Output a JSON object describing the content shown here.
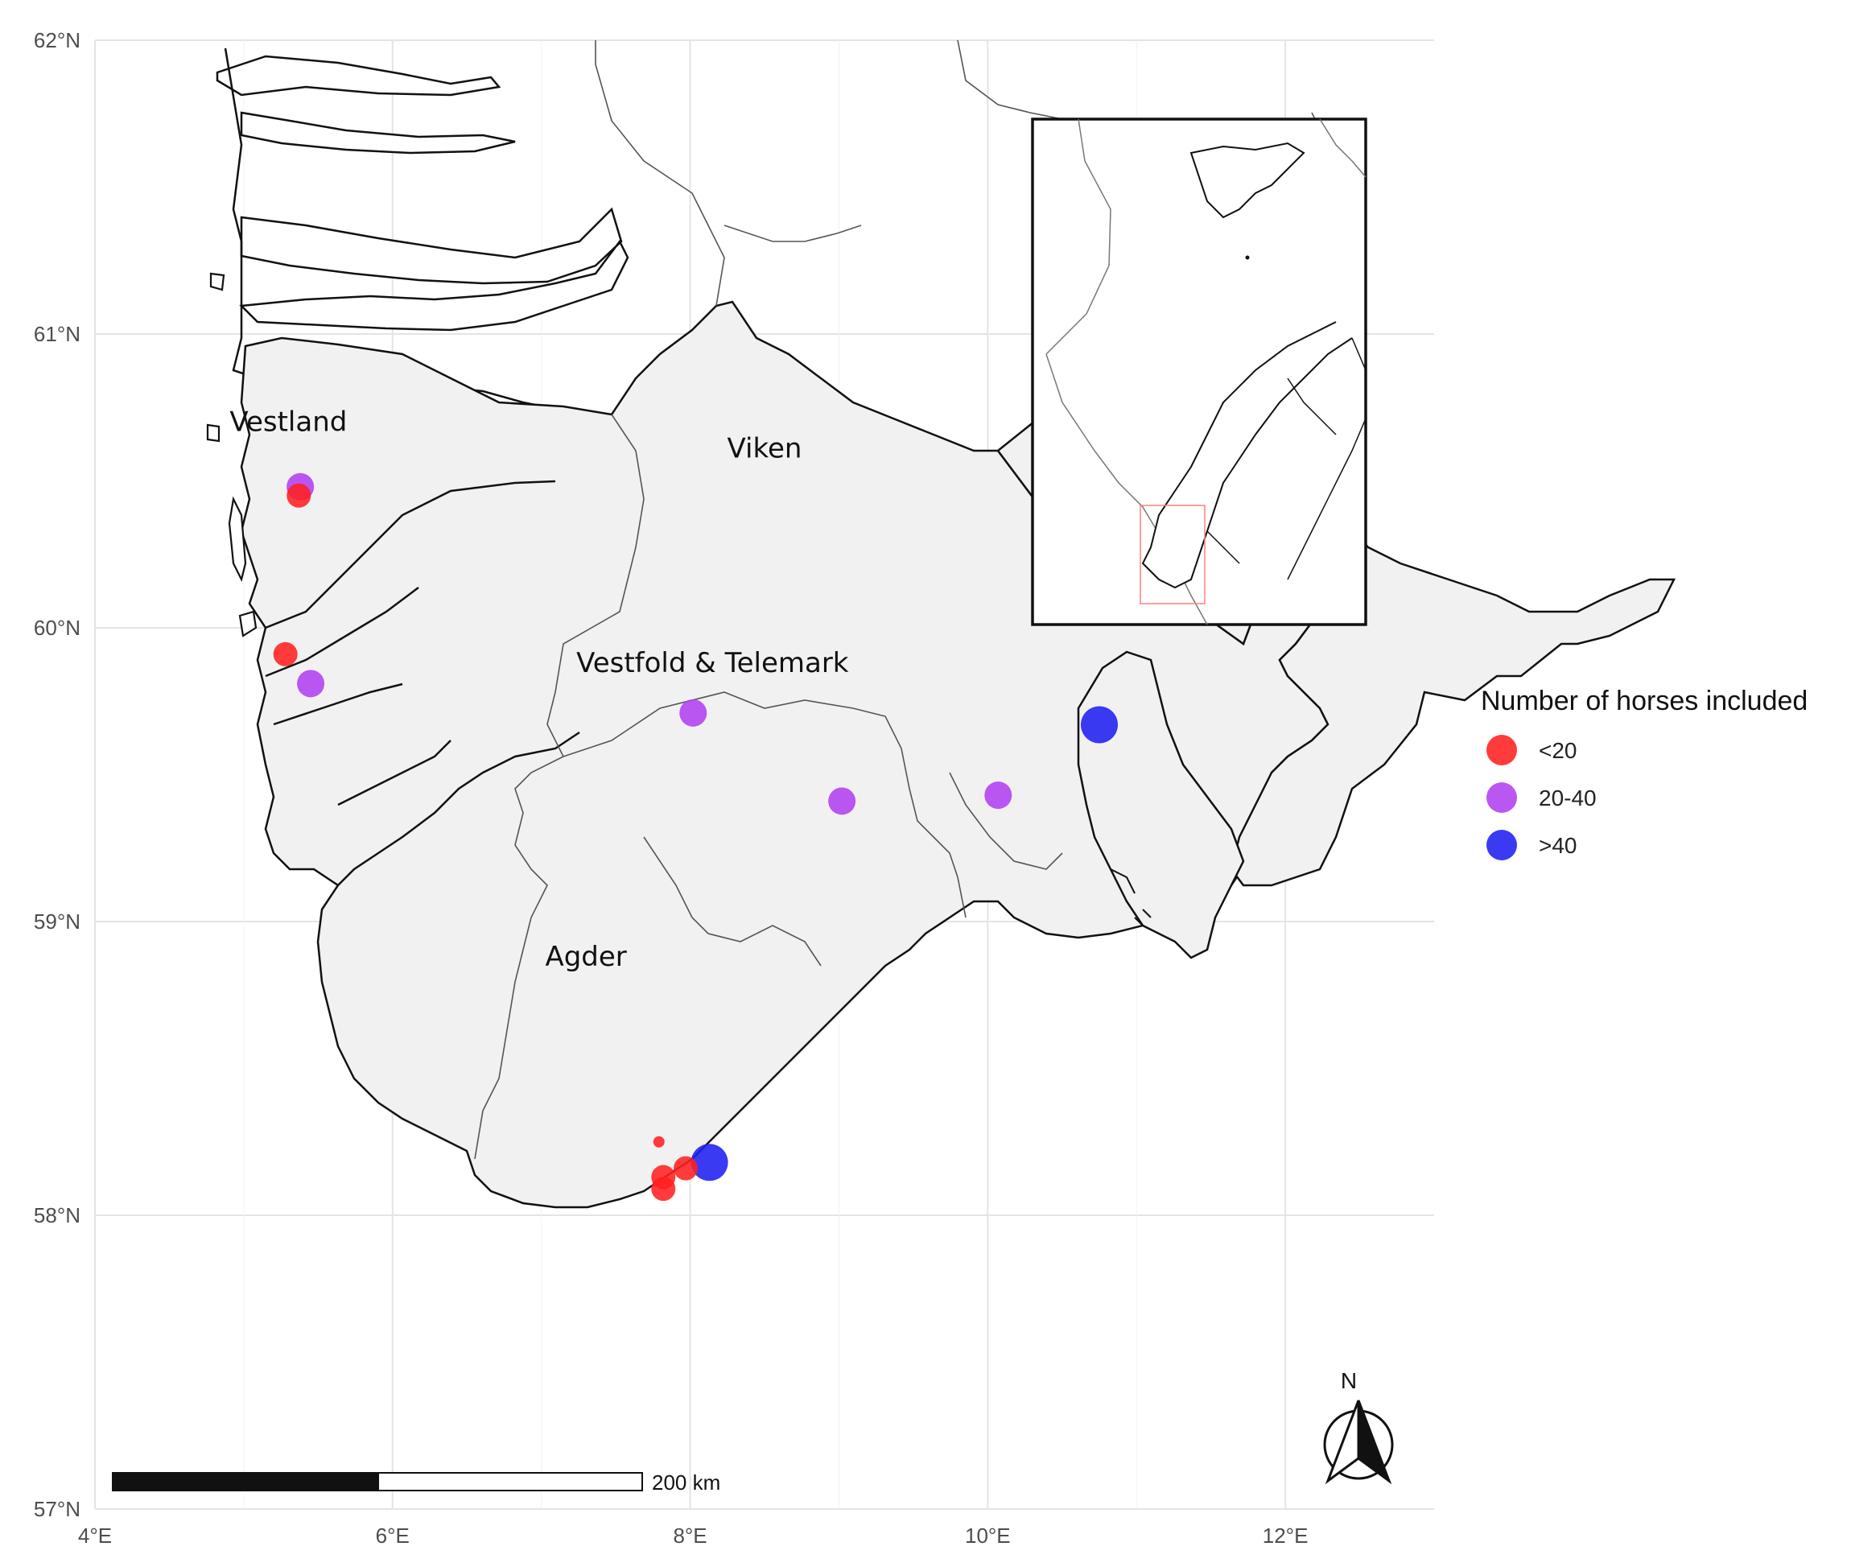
{
  "axes": {
    "x_ticks": [
      "4°E",
      "6°E",
      "8°E",
      "10°E",
      "12°E"
    ],
    "x_values": [
      4,
      6,
      8,
      10,
      12
    ],
    "y_ticks": [
      "57°N",
      "58°N",
      "59°N",
      "60°N",
      "61°N",
      "62°N"
    ],
    "y_values": [
      57,
      58,
      59,
      60,
      61,
      62
    ],
    "xlim": [
      4,
      13
    ],
    "ylim": [
      57,
      62
    ]
  },
  "regions": [
    {
      "name": "Vestland",
      "lon": 5.3,
      "lat": 60.67
    },
    {
      "name": "Viken",
      "lon": 8.5,
      "lat": 60.58
    },
    {
      "name": "Vestfold & Telemark",
      "lon": 8.15,
      "lat": 59.85
    },
    {
      "name": "Agder",
      "lon": 7.3,
      "lat": 58.85
    }
  ],
  "legend": {
    "title": "Number of horses included",
    "items": [
      {
        "label": "<20",
        "color": "#ff2020"
      },
      {
        "label": "20-40",
        "color": "#b040f0"
      },
      {
        "label": ">40",
        "color": "#1f1ff0"
      }
    ]
  },
  "sites": [
    {
      "lon": 5.38,
      "lat": 60.48,
      "category": "20-40"
    },
    {
      "lon": 5.37,
      "lat": 60.45,
      "category": "<20"
    },
    {
      "lon": 5.28,
      "lat": 59.91,
      "category": "<20"
    },
    {
      "lon": 5.45,
      "lat": 59.81,
      "category": "20-40"
    },
    {
      "lon": 8.02,
      "lat": 59.71,
      "category": "20-40"
    },
    {
      "lon": 9.02,
      "lat": 59.41,
      "category": "20-40"
    },
    {
      "lon": 10.07,
      "lat": 59.43,
      "category": "20-40"
    },
    {
      "lon": 10.75,
      "lat": 59.67,
      "category": ">40"
    },
    {
      "lon": 8.13,
      "lat": 58.18,
      "category": ">40"
    },
    {
      "lon": 7.97,
      "lat": 58.16,
      "category": "<20"
    },
    {
      "lon": 7.82,
      "lat": 58.13,
      "category": "<20"
    },
    {
      "lon": 7.82,
      "lat": 58.09,
      "category": "<20"
    },
    {
      "lon": 7.79,
      "lat": 58.25,
      "category": "<20"
    }
  ],
  "scale_bar": {
    "label": "200 km"
  },
  "north_arrow": {
    "label": "N",
    "icon": "north-arrow-icon"
  },
  "inset": {
    "icon": "norway-overview-icon"
  }
}
